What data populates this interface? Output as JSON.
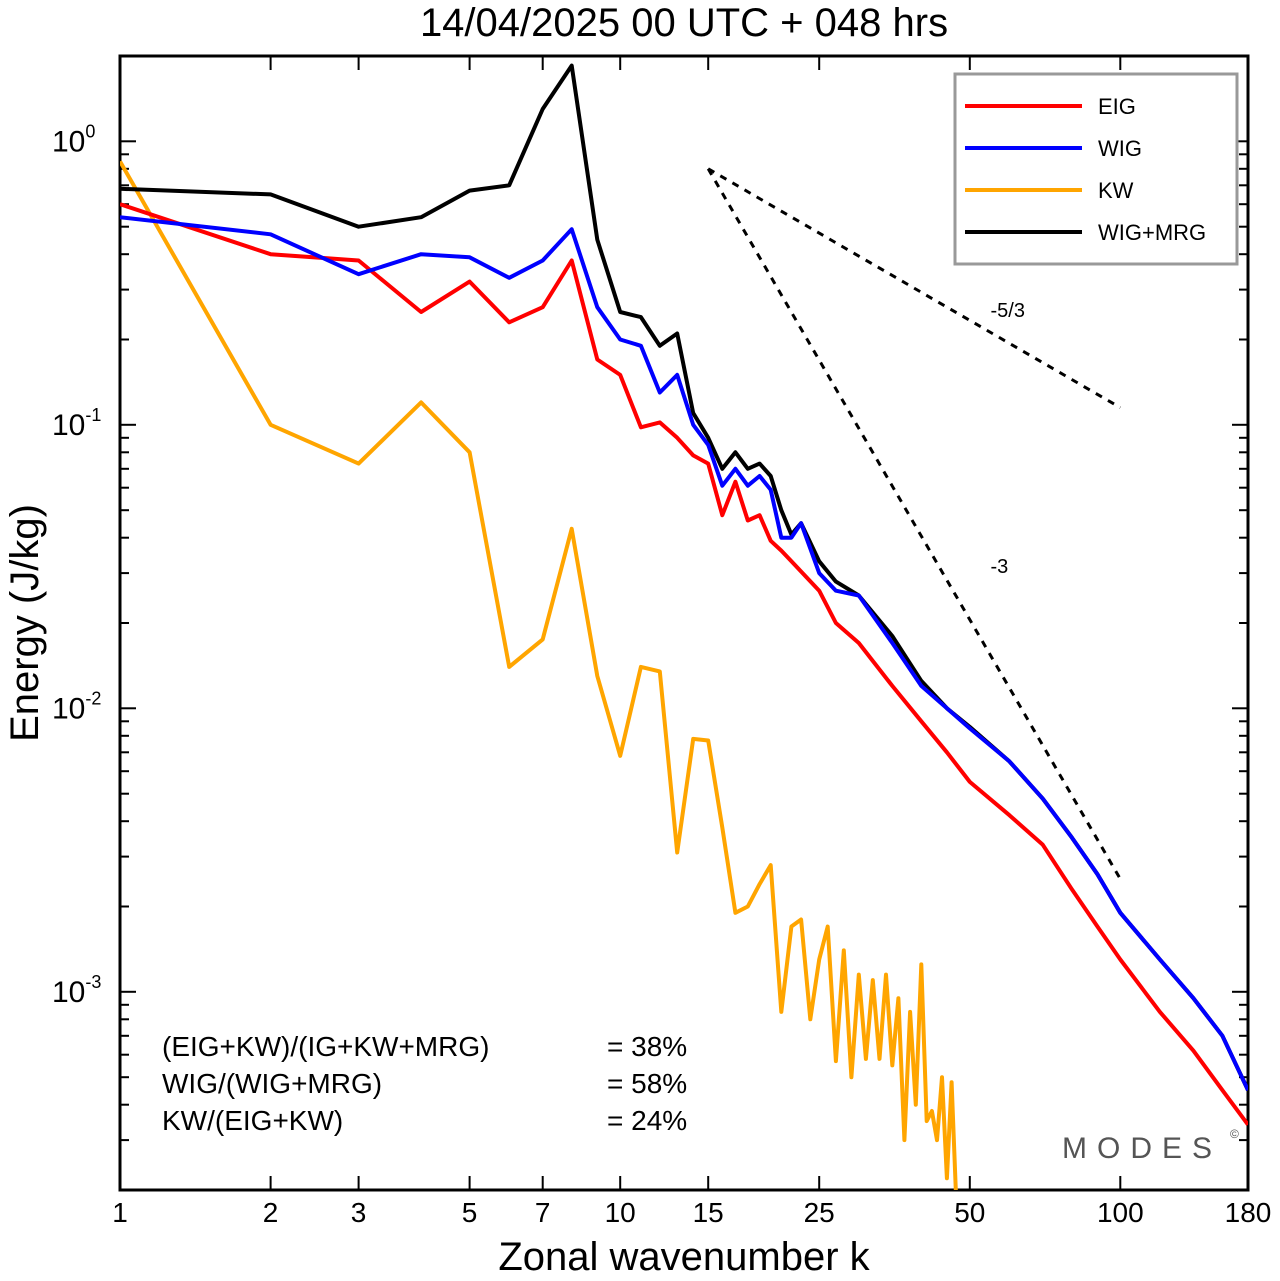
{
  "chart_data": {
    "type": "line",
    "title": "14/04/2025  00 UTC  + 048 hrs",
    "xlabel": "Zonal wavenumber k",
    "ylabel": "Energy (J/kg)",
    "xscale": "log",
    "yscale": "log",
    "xlim": [
      1,
      180
    ],
    "ylim": [
      0.0002,
      2.0
    ],
    "x_ticks": [
      1,
      2,
      3,
      5,
      7,
      10,
      15,
      25,
      50,
      100,
      180
    ],
    "x_tick_labels": [
      "1",
      "2",
      "3",
      "5",
      "7",
      "10",
      "15",
      "25",
      "50",
      "100",
      "180"
    ],
    "y_ticks": [
      {
        "value": 1,
        "base": "10",
        "exp": "0"
      },
      {
        "value": 0.1,
        "base": "10",
        "exp": "-1"
      },
      {
        "value": 0.01,
        "base": "10",
        "exp": "-2"
      },
      {
        "value": 0.001,
        "base": "10",
        "exp": "-3"
      }
    ],
    "legend_position": "top-right",
    "series": [
      {
        "name": "EIG",
        "color": "#ff0000",
        "points": [
          [
            1,
            0.6
          ],
          [
            2,
            0.4
          ],
          [
            3,
            0.38
          ],
          [
            4,
            0.25
          ],
          [
            5,
            0.32
          ],
          [
            6,
            0.23
          ],
          [
            7,
            0.26
          ],
          [
            8,
            0.38
          ],
          [
            9,
            0.17
          ],
          [
            10,
            0.15
          ],
          [
            11,
            0.098
          ],
          [
            12,
            0.102
          ],
          [
            13,
            0.09
          ],
          [
            14,
            0.078
          ],
          [
            15,
            0.073
          ],
          [
            16,
            0.048
          ],
          [
            17,
            0.063
          ],
          [
            18,
            0.046
          ],
          [
            19,
            0.048
          ],
          [
            20,
            0.039
          ],
          [
            21,
            0.036
          ],
          [
            22,
            0.033
          ],
          [
            25,
            0.026
          ],
          [
            27,
            0.02
          ],
          [
            30,
            0.017
          ],
          [
            35,
            0.012
          ],
          [
            40,
            0.009
          ],
          [
            45,
            0.007
          ],
          [
            50,
            0.0055
          ],
          [
            60,
            0.0042
          ],
          [
            70,
            0.0033
          ],
          [
            80,
            0.0023
          ],
          [
            90,
            0.0017
          ],
          [
            100,
            0.0013
          ],
          [
            120,
            0.00085
          ],
          [
            140,
            0.00062
          ],
          [
            160,
            0.00045
          ],
          [
            180,
            0.00034
          ]
        ]
      },
      {
        "name": "WIG",
        "color": "#0000ff",
        "points": [
          [
            1,
            0.54
          ],
          [
            2,
            0.47
          ],
          [
            3,
            0.34
          ],
          [
            4,
            0.4
          ],
          [
            5,
            0.39
          ],
          [
            6,
            0.33
          ],
          [
            7,
            0.38
          ],
          [
            8,
            0.49
          ],
          [
            9,
            0.26
          ],
          [
            10,
            0.2
          ],
          [
            11,
            0.19
          ],
          [
            12,
            0.13
          ],
          [
            13,
            0.15
          ],
          [
            14,
            0.1
          ],
          [
            15,
            0.085
          ],
          [
            16,
            0.061
          ],
          [
            17,
            0.07
          ],
          [
            18,
            0.061
          ],
          [
            19,
            0.066
          ],
          [
            20,
            0.059
          ],
          [
            21,
            0.04
          ],
          [
            22,
            0.04
          ],
          [
            23,
            0.045
          ],
          [
            25,
            0.03
          ],
          [
            27,
            0.026
          ],
          [
            30,
            0.025
          ],
          [
            35,
            0.017
          ],
          [
            40,
            0.012
          ],
          [
            45,
            0.01
          ],
          [
            50,
            0.0085
          ],
          [
            60,
            0.0065
          ],
          [
            70,
            0.0048
          ],
          [
            80,
            0.0035
          ],
          [
            90,
            0.0026
          ],
          [
            100,
            0.0019
          ],
          [
            120,
            0.0013
          ],
          [
            140,
            0.00095
          ],
          [
            160,
            0.0007
          ],
          [
            180,
            0.00045
          ]
        ]
      },
      {
        "name": "KW",
        "color": "#ffa500",
        "points": [
          [
            1,
            0.85
          ],
          [
            2,
            0.1
          ],
          [
            3,
            0.073
          ],
          [
            4,
            0.12
          ],
          [
            5,
            0.08
          ],
          [
            6,
            0.014
          ],
          [
            7,
            0.0175
          ],
          [
            8,
            0.043
          ],
          [
            9,
            0.013
          ],
          [
            10,
            0.0068
          ],
          [
            11,
            0.014
          ],
          [
            12,
            0.0135
          ],
          [
            13,
            0.0031
          ],
          [
            14,
            0.0078
          ],
          [
            15,
            0.0077
          ],
          [
            16,
            0.0038
          ],
          [
            17,
            0.0019
          ],
          [
            18,
            0.002
          ],
          [
            19,
            0.0024
          ],
          [
            20,
            0.0028
          ],
          [
            21,
            0.00085
          ],
          [
            22,
            0.0017
          ],
          [
            23,
            0.0018
          ],
          [
            24,
            0.0008
          ],
          [
            25,
            0.0013
          ],
          [
            26,
            0.0017
          ],
          [
            27,
            0.00057
          ],
          [
            28,
            0.0014
          ],
          [
            29,
            0.0005
          ],
          [
            30,
            0.00115
          ],
          [
            31,
            0.00058
          ],
          [
            32,
            0.0011
          ],
          [
            33,
            0.00058
          ],
          [
            34,
            0.00115
          ],
          [
            35,
            0.00055
          ],
          [
            36,
            0.00095
          ],
          [
            37,
            0.0003
          ],
          [
            38,
            0.00085
          ],
          [
            39,
            0.0004
          ],
          [
            40,
            0.00125
          ],
          [
            41,
            0.00035
          ],
          [
            42,
            0.00038
          ],
          [
            43,
            0.0003
          ],
          [
            44,
            0.0005
          ],
          [
            45,
            0.00022
          ],
          [
            46,
            0.00048
          ],
          [
            47,
            0.00018
          ]
        ]
      },
      {
        "name": "WIG+MRG",
        "color": "#000000",
        "points": [
          [
            1,
            0.68
          ],
          [
            2,
            0.65
          ],
          [
            3,
            0.5
          ],
          [
            4,
            0.54
          ],
          [
            5,
            0.67
          ],
          [
            6,
            0.7
          ],
          [
            7,
            1.3
          ],
          [
            8,
            1.85
          ],
          [
            9,
            0.45
          ],
          [
            10,
            0.25
          ],
          [
            11,
            0.24
          ],
          [
            12,
            0.19
          ],
          [
            13,
            0.21
          ],
          [
            14,
            0.11
          ],
          [
            15,
            0.09
          ],
          [
            16,
            0.07
          ],
          [
            17,
            0.08
          ],
          [
            18,
            0.07
          ],
          [
            19,
            0.073
          ],
          [
            20,
            0.066
          ],
          [
            21,
            0.05
          ],
          [
            22,
            0.041
          ],
          [
            23,
            0.045
          ],
          [
            25,
            0.033
          ],
          [
            27,
            0.028
          ],
          [
            30,
            0.025
          ],
          [
            35,
            0.018
          ],
          [
            40,
            0.0125
          ],
          [
            45,
            0.01
          ],
          [
            50,
            0.0086
          ],
          [
            60,
            0.0065
          ],
          [
            70,
            0.0048
          ],
          [
            80,
            0.0035
          ],
          [
            90,
            0.0026
          ],
          [
            100,
            0.0019
          ],
          [
            120,
            0.0013
          ],
          [
            140,
            0.00095
          ],
          [
            160,
            0.0007
          ],
          [
            180,
            0.00045
          ]
        ]
      }
    ],
    "reference_lines": [
      {
        "label": "-5/3",
        "from": [
          15,
          0.8
        ],
        "to": [
          100,
          0.115
        ],
        "label_at": [
          55,
          0.24
        ]
      },
      {
        "label": "-3",
        "from": [
          15,
          0.8
        ],
        "to": [
          100,
          0.0025
        ],
        "label_at": [
          55,
          0.03
        ]
      }
    ],
    "ratios": [
      {
        "label": "(EIG+KW)/(IG+KW+MRG)",
        "value": "= 38%"
      },
      {
        "label": "WIG/(WIG+MRG)",
        "value": "= 58%"
      },
      {
        "label": "KW/(EIG+KW)",
        "value": "= 24%"
      }
    ],
    "brand": "MODES",
    "brand_mark": "©"
  }
}
